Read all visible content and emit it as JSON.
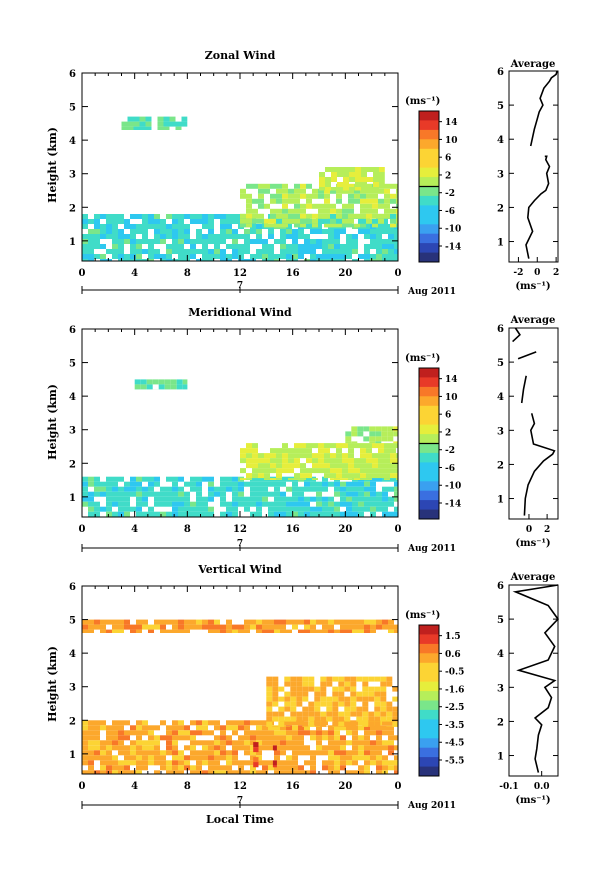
{
  "x_axis_label": "Local Time",
  "panels": [
    {
      "title": "Zonal Wind",
      "ylabel": "Height (km)",
      "cbar_unit": "(ms⁻¹)",
      "cbar_ticks": [
        "14",
        "10",
        "6",
        "2",
        "-2",
        "-6",
        "-10",
        "-14"
      ],
      "x_ticks": [
        "0",
        "4",
        "8",
        "12",
        "16",
        "20",
        "0"
      ],
      "y_ticks": [
        "1",
        "2",
        "3",
        "4",
        "5",
        "6"
      ],
      "day_label": "7",
      "date_label": "Aug 2011",
      "avg_title": "Average",
      "avg_x_ticks": [
        "-2",
        "0",
        "2"
      ],
      "avg_xlabel": "(ms⁻¹)",
      "avg_y_ticks": [
        "1",
        "2",
        "3",
        "4",
        "5",
        "6"
      ]
    },
    {
      "title": "Meridional Wind",
      "ylabel": "Height (km)",
      "cbar_unit": "(ms⁻¹)",
      "cbar_ticks": [
        "14",
        "10",
        "6",
        "2",
        "-2",
        "-6",
        "-10",
        "-14"
      ],
      "x_ticks": [
        "0",
        "4",
        "8",
        "12",
        "16",
        "20",
        "0"
      ],
      "y_ticks": [
        "1",
        "2",
        "3",
        "4",
        "5",
        "6"
      ],
      "day_label": "7",
      "date_label": "Aug 2011",
      "avg_title": "Average",
      "avg_x_ticks": [
        "0",
        "2"
      ],
      "avg_xlabel": "(ms⁻¹)",
      "avg_y_ticks": [
        "1",
        "2",
        "3",
        "4",
        "5",
        "6"
      ]
    },
    {
      "title": "Vertical Wind",
      "ylabel": "Height (km)",
      "cbar_unit": "(ms⁻¹)",
      "cbar_ticks": [
        "1.5",
        "0.6",
        "-0.5",
        "-1.6",
        "-2.5",
        "-3.5",
        "-4.5",
        "-5.5"
      ],
      "x_ticks": [
        "0",
        "4",
        "8",
        "12",
        "16",
        "20",
        "0"
      ],
      "y_ticks": [
        "1",
        "2",
        "3",
        "4",
        "5",
        "6"
      ],
      "day_label": "7",
      "date_label": "Aug 2011",
      "avg_title": "Average",
      "avg_x_ticks": [
        "-0.1",
        "0.0"
      ],
      "avg_xlabel": "(ms⁻¹)",
      "avg_y_ticks": [
        "1",
        "2",
        "3",
        "4",
        "5",
        "6"
      ]
    }
  ],
  "chart_data": [
    {
      "type": "heatmap",
      "title": "Zonal Wind",
      "xlabel": "",
      "ylabel": "Height (km)",
      "xlim": [
        0,
        24
      ],
      "ylim": [
        0.4,
        6
      ],
      "colorbar": {
        "unit": "(ms⁻¹)",
        "range": [
          -16,
          16
        ],
        "zero_contour": true
      },
      "regions": [
        {
          "x_from": 0,
          "x_to": 24,
          "y_from": 0.4,
          "y_to": 1.8,
          "value": -4
        },
        {
          "x_from": 12,
          "x_to": 24,
          "y_from": 1.4,
          "y_to": 2.7,
          "value": 1
        },
        {
          "x_from": 18,
          "x_to": 23,
          "y_from": 2.5,
          "y_to": 3.2,
          "value": 2
        },
        {
          "x_from": 3,
          "x_to": 8,
          "y_from": 4.3,
          "y_to": 4.7,
          "value": -3
        }
      ]
    },
    {
      "type": "line",
      "title": "Average",
      "xlabel": "(ms⁻¹)",
      "xlim": [
        -3,
        2.2
      ],
      "ylim": [
        0.4,
        6
      ],
      "series": [
        {
          "x": [
            -0.9,
            -1.2,
            -0.5,
            -1.0,
            -0.9,
            -0.3,
            0.4,
            0.9,
            1.2,
            1.0,
            1.3,
            0.9,
            1.0,
            0.8
          ],
          "y": [
            0.5,
            0.9,
            1.3,
            1.7,
            2.0,
            2.2,
            2.4,
            2.5,
            2.7,
            3.0,
            3.2,
            3.4,
            3.5,
            3.5
          ]
        },
        {
          "x": [
            -0.7,
            -0.3,
            0.0,
            0.2,
            0.6,
            0.3,
            0.7,
            1.3,
            1.5,
            2.0,
            2.1
          ],
          "y": [
            3.8,
            4.3,
            4.6,
            4.8,
            5.0,
            5.2,
            5.5,
            5.7,
            5.8,
            5.9,
            6.0
          ]
        }
      ]
    },
    {
      "type": "heatmap",
      "title": "Meridional Wind",
      "xlabel": "",
      "ylabel": "Height (km)",
      "xlim": [
        0,
        24
      ],
      "ylim": [
        0.4,
        6
      ],
      "colorbar": {
        "unit": "(ms⁻¹)",
        "range": [
          -16,
          16
        ],
        "zero_contour": true
      },
      "regions": [
        {
          "x_from": 0,
          "x_to": 24,
          "y_from": 0.4,
          "y_to": 1.6,
          "value": -4
        },
        {
          "x_from": 12,
          "x_to": 24,
          "y_from": 1.5,
          "y_to": 2.6,
          "value": 2
        },
        {
          "x_from": 20,
          "x_to": 24,
          "y_from": 2.6,
          "y_to": 3.1,
          "value": 1
        },
        {
          "x_from": 4,
          "x_to": 8,
          "y_from": 4.2,
          "y_to": 4.5,
          "value": -3
        }
      ]
    },
    {
      "type": "line",
      "title": "Average",
      "xlabel": "(ms⁻¹)",
      "xlim": [
        -2.2,
        3.2
      ],
      "ylim": [
        0.4,
        6
      ],
      "series": [
        {
          "x": [
            -0.5,
            -0.4,
            -0.1,
            0.6,
            1.6,
            2.6,
            2.8,
            0.5,
            0.2,
            0.6,
            0.3
          ],
          "y": [
            0.5,
            1.0,
            1.4,
            1.8,
            2.1,
            2.3,
            2.4,
            2.6,
            3.0,
            3.2,
            3.5
          ]
        },
        {
          "x": [
            -0.8,
            -0.6,
            -0.3
          ],
          "y": [
            3.8,
            4.2,
            4.6
          ]
        },
        {
          "x": [
            -1.2,
            0.8
          ],
          "y": [
            5.1,
            5.3
          ]
        },
        {
          "x": [
            -1.8,
            -1.0,
            -1.5
          ],
          "y": [
            5.6,
            5.8,
            6.0
          ]
        }
      ]
    },
    {
      "type": "heatmap",
      "title": "Vertical Wind",
      "xlabel": "Local Time",
      "ylabel": "Height (km)",
      "xlim": [
        0,
        24
      ],
      "ylim": [
        0.4,
        6
      ],
      "colorbar": {
        "unit": "(ms⁻¹)",
        "range": [
          -6,
          2
        ]
      },
      "regions": [
        {
          "x_from": 0,
          "x_to": 24,
          "y_from": 0.4,
          "y_to": 2.0,
          "value": 0.1
        },
        {
          "x_from": 14,
          "x_to": 24,
          "y_from": 1.8,
          "y_to": 3.3,
          "value": -0.1
        },
        {
          "x_from": 0,
          "x_to": 24,
          "y_from": 4.6,
          "y_to": 5.0,
          "value": 0.2
        },
        {
          "x_from": 13,
          "x_to": 13.4,
          "y_from": 0.6,
          "y_to": 1.5,
          "value": 1.5
        },
        {
          "x_from": 14.5,
          "x_to": 14.8,
          "y_from": 0.6,
          "y_to": 1.4,
          "value": 1.5
        }
      ]
    },
    {
      "type": "line",
      "title": "Average",
      "xlabel": "(ms⁻¹)",
      "xlim": [
        -0.1,
        0.05
      ],
      "ylim": [
        0.4,
        6
      ],
      "series": [
        {
          "x": [
            -0.01,
            -0.02,
            -0.015,
            -0.01,
            0.0,
            -0.02,
            0.02,
            0.03,
            0.01,
            0.04,
            -0.07,
            0.02,
            0.04,
            0.01,
            0.05,
            0.02,
            -0.08,
            0.05
          ],
          "y": [
            0.5,
            0.9,
            1.2,
            1.6,
            1.9,
            2.1,
            2.4,
            2.7,
            3.0,
            3.2,
            3.5,
            3.8,
            4.2,
            4.6,
            5.0,
            5.4,
            5.8,
            6.0
          ]
        }
      ]
    }
  ]
}
